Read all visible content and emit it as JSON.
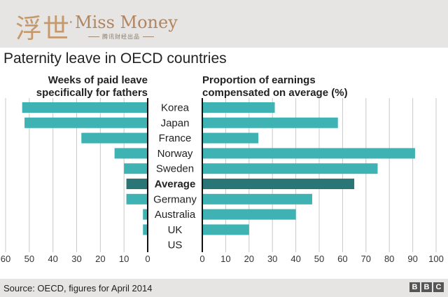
{
  "header": {
    "logo_script": "浮世",
    "logo_dot": "·",
    "logo_word": "Miss Money",
    "logo_tagline": "腾讯财经出品"
  },
  "chart_data": {
    "type": "bar",
    "title": "Paternity leave in OECD countries",
    "categories": [
      "Korea",
      "Japan",
      "France",
      "Norway",
      "Sweden",
      "Average",
      "Germany",
      "Australia",
      "UK",
      "US"
    ],
    "highlight_category": "Average",
    "left_panel": {
      "title_line1": "Weeks of paid leave",
      "title_line2": "specifically for fathers",
      "values": [
        53,
        52,
        28,
        14,
        10,
        9,
        9,
        2,
        2,
        0
      ],
      "xlim": [
        0,
        60
      ],
      "ticks": [
        60,
        50,
        40,
        30,
        20,
        10,
        0
      ],
      "direction": "right-to-left"
    },
    "right_panel": {
      "title_line1": "Proportion of earnings",
      "title_line2": "compensated on average (%)",
      "values": [
        31,
        58,
        24,
        91,
        75,
        65,
        47,
        40,
        20,
        0
      ],
      "xlim": [
        0,
        100
      ],
      "ticks": [
        0,
        10,
        20,
        30,
        40,
        50,
        60,
        70,
        80,
        90,
        100
      ]
    },
    "colors": {
      "bar": "#3fb3b3",
      "bar_highlight": "#2a7676",
      "grid": "#c8c8c8",
      "axis": "#111111"
    },
    "grid": true
  },
  "footer": {
    "source": "Source: OECD, figures for April 2014",
    "brand_letters": [
      "B",
      "B",
      "C"
    ]
  }
}
